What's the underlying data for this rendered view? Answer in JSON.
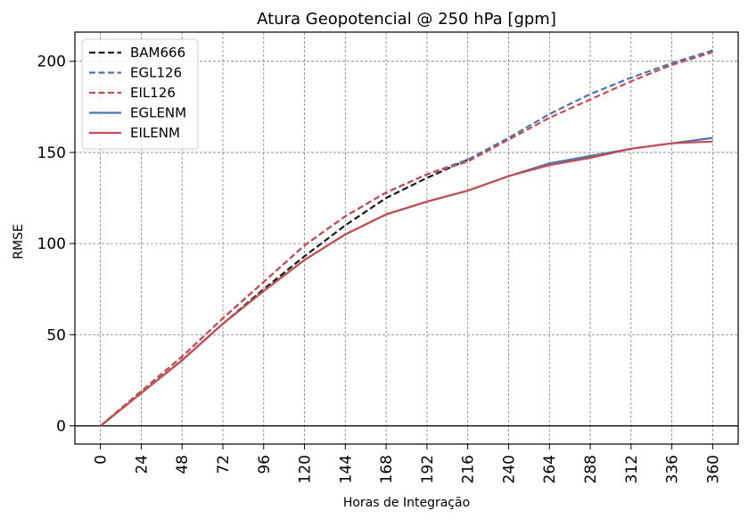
{
  "chart_data": {
    "type": "line",
    "title": "Atura Geopotencial @ 250 hPa [gpm]",
    "xlabel": "Horas de Integração",
    "ylabel": "RMSE",
    "x": [
      0,
      24,
      48,
      72,
      96,
      120,
      144,
      168,
      192,
      216,
      240,
      264,
      288,
      312,
      336,
      360
    ],
    "xticks": [
      "0",
      "24",
      "48",
      "72",
      "96",
      "120",
      "144",
      "168",
      "192",
      "216",
      "240",
      "264",
      "288",
      "312",
      "336",
      "360"
    ],
    "yticks": [
      "0",
      "50",
      "100",
      "150",
      "200"
    ],
    "ylim": [
      -10,
      216
    ],
    "xlim": [
      -15,
      375
    ],
    "grid": true,
    "legend_position": "top-left",
    "series": [
      {
        "name": "BAM666",
        "style": "dashed",
        "color": "#1a1a1a",
        "values": [
          0,
          18,
          36,
          56,
          75,
          93,
          110,
          125,
          136,
          146,
          null,
          null,
          null,
          null,
          null,
          null
        ]
      },
      {
        "name": "EGL126",
        "style": "dashed",
        "color": "#4c72b0",
        "values": [
          0,
          19,
          38,
          59,
          79,
          99,
          115,
          128,
          138,
          146,
          158,
          171,
          182,
          191,
          199,
          206
        ]
      },
      {
        "name": "EIL126",
        "style": "dashed",
        "color": "#c44e52",
        "values": [
          0,
          19,
          38,
          59,
          79,
          99,
          115,
          128,
          138,
          145,
          157,
          169,
          179,
          189,
          198,
          205
        ]
      },
      {
        "name": "EGLENM",
        "style": "solid",
        "color": "#4c72b0",
        "values": [
          0,
          18,
          36,
          56,
          74,
          91,
          105,
          116,
          123,
          129,
          137,
          144,
          148,
          152,
          155,
          158
        ]
      },
      {
        "name": "EILENM",
        "style": "solid",
        "color": "#c44e52",
        "values": [
          0,
          18,
          36,
          56,
          74,
          91,
          105,
          116,
          123,
          129,
          137,
          143,
          147,
          152,
          155,
          156
        ]
      }
    ]
  }
}
